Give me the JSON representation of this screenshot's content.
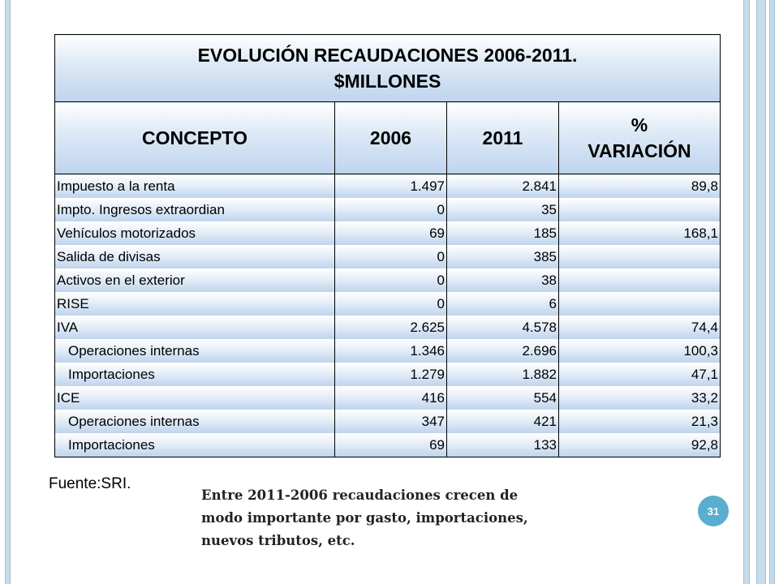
{
  "table": {
    "title_line1": "EVOLUCIÓN RECAUDACIONES 2006-2011.",
    "title_line2": "$MILLONES",
    "headers": [
      "CONCEPTO",
      "2006",
      "2011",
      "%",
      "VARIACIÓN"
    ],
    "rows": [
      {
        "concepto": "Impuesto a la renta",
        "y2006": "1.497",
        "y2011": "2.841",
        "variacion": "89,8"
      },
      {
        "concepto": "Impto. Ingresos extraordian",
        "y2006": "0",
        "y2011": "35",
        "variacion": ""
      },
      {
        "concepto": "Vehículos motorizados",
        "y2006": "69",
        "y2011": "185",
        "variacion": "168,1"
      },
      {
        "concepto": "Salida de divisas",
        "y2006": "0",
        "y2011": "385",
        "variacion": ""
      },
      {
        "concepto": "Activos en el exterior",
        "y2006": "0",
        "y2011": "38",
        "variacion": ""
      },
      {
        "concepto": "RISE",
        "y2006": "0",
        "y2011": "6",
        "variacion": ""
      },
      {
        "concepto": "IVA",
        "y2006": "2.625",
        "y2011": "4.578",
        "variacion": "74,4"
      },
      {
        "concepto": "Operaciones internas",
        "y2006": "1.346",
        "y2011": "2.696",
        "variacion": "100,3"
      },
      {
        "concepto": "Importaciones",
        "y2006": "1.279",
        "y2011": "1.882",
        "variacion": "47,1"
      },
      {
        "concepto": "ICE",
        "y2006": "416",
        "y2011": "554",
        "variacion": "33,2"
      },
      {
        "concepto": "Operaciones internas",
        "y2006": "347",
        "y2011": "421",
        "variacion": "21,3"
      },
      {
        "concepto": "Importaciones",
        "y2006": "69",
        "y2011": "133",
        "variacion": "92,8"
      }
    ]
  },
  "source": "Fuente:SRI.",
  "note_lines": [
    "Entre 2011-2006 recaudaciones crecen de",
    "modo importante por gasto, importaciones,",
    "nuevos tributos, etc."
  ],
  "page_number": "31",
  "colors": {
    "header_gradient_bottom": "#bed4ee",
    "frame": "#c7dbe8",
    "badge": "#5aaecf"
  }
}
